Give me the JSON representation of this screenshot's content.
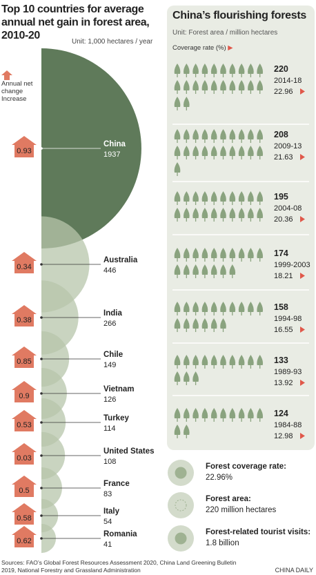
{
  "chart_data": [
    {
      "type": "half-circle",
      "title": "Top 10 countries for average annual net gain in forest area, 2010-20",
      "unit": "Unit: 1,000 hectares / year",
      "legend_title": "Annual net change",
      "legend_item": "Increase",
      "categories": [
        "China",
        "Australia",
        "India",
        "Chile",
        "Vietnam",
        "Turkey",
        "United States",
        "France",
        "Italy",
        "Romania"
      ],
      "values": [
        1937,
        446,
        266,
        149,
        126,
        114,
        108,
        83,
        54,
        41
      ],
      "change_rates": [
        0.93,
        0.34,
        0.38,
        0.85,
        0.9,
        0.53,
        0.03,
        0.5,
        0.58,
        0.62
      ],
      "color": "#5f7a5a",
      "secondary_color": "#b7c6ab",
      "badge_color": "#e07a62"
    },
    {
      "type": "pictogram",
      "title": "China’s flourishing forests",
      "unit": "Unit: Forest area / million hectares",
      "coverage_label": "Coverage rate (%)",
      "categories": [
        "2014-18",
        "2009-13",
        "2004-08",
        "1999-2003",
        "1994-98",
        "1989-93",
        "1984-88"
      ],
      "values": [
        220,
        208,
        195,
        174,
        158,
        133,
        124
      ],
      "coverage": [
        22.96,
        21.63,
        20.36,
        18.21,
        16.55,
        13.92,
        12.98
      ],
      "color": "#8aa37f",
      "panel_color": "#e9ece4"
    }
  ],
  "stats": [
    {
      "label": "Forest coverage rate:",
      "value": "22.96%"
    },
    {
      "label": "Forest area:",
      "value": "220 million hectares"
    },
    {
      "label": "Forest-related tourist visits:",
      "value": "1.8 billion"
    }
  ],
  "sources": "Sources: FAO’s Global Forest Resources Assessment 2020, China Land Greening Bulletin 2019, National Forestry and Grassland Administration",
  "credit": "CHINA DAILY"
}
